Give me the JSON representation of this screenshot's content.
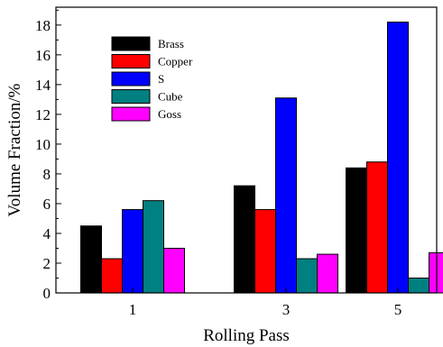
{
  "chart_data": {
    "type": "bar",
    "categories": [
      "1",
      "3",
      "5"
    ],
    "series": [
      {
        "name": "Brass",
        "color": "#000000",
        "values": [
          4.5,
          7.2,
          8.4
        ]
      },
      {
        "name": "Copper",
        "color": "#ff0000",
        "values": [
          2.3,
          5.6,
          8.8
        ]
      },
      {
        "name": "S",
        "color": "#0000ff",
        "values": [
          5.6,
          13.1,
          18.2
        ]
      },
      {
        "name": "Cube",
        "color": "#008080",
        "values": [
          6.2,
          2.3,
          1.0
        ]
      },
      {
        "name": "Goss",
        "color": "#ff00ff",
        "values": [
          3.0,
          2.6,
          2.7
        ]
      }
    ],
    "title": "",
    "xlabel": "Rolling Pass",
    "ylabel": "Volume Fraction/%",
    "ylim": [
      0,
      19.2
    ],
    "yticks": [
      "0",
      "2",
      "4",
      "6",
      "8",
      "10",
      "12",
      "14",
      "16",
      "18"
    ],
    "grid": false,
    "legend": "top-left"
  }
}
